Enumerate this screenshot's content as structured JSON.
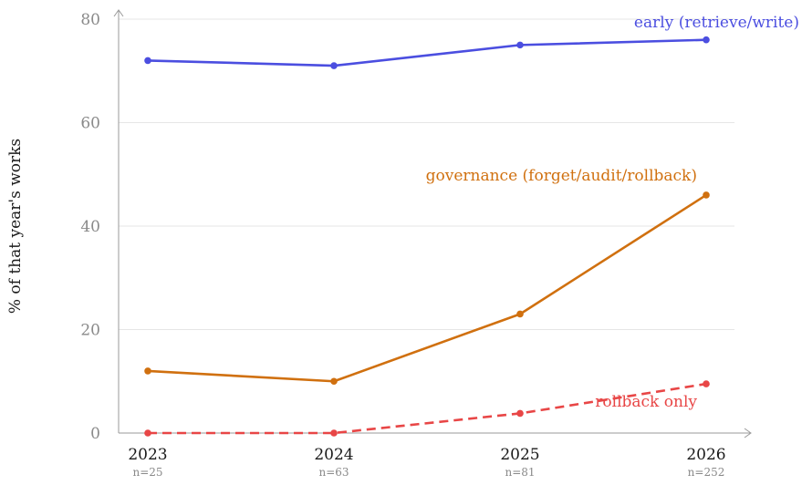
{
  "chart_data": {
    "type": "line",
    "ylabel": "% of that year's works",
    "xlabel": "",
    "ylim": [
      0,
      80
    ],
    "yticks": [
      0,
      20,
      40,
      60,
      80
    ],
    "grid": true,
    "categories": [
      "2023",
      "2024",
      "2025",
      "2026"
    ],
    "sample_sizes": [
      "n=25",
      "n=63",
      "n=81",
      "n=252"
    ],
    "series": [
      {
        "name": "early (retrieve/write)",
        "color": "#4b4ee0",
        "style": "solid",
        "values": [
          72,
          71,
          75,
          76
        ]
      },
      {
        "name": "governance (forget/audit/rollback)",
        "color": "#d0700f",
        "style": "solid",
        "values": [
          12,
          10,
          23,
          46
        ]
      },
      {
        "name": "rollback only",
        "color": "#e84646",
        "style": "dashed",
        "values": [
          0,
          0,
          3.8,
          9.5
        ]
      }
    ]
  }
}
